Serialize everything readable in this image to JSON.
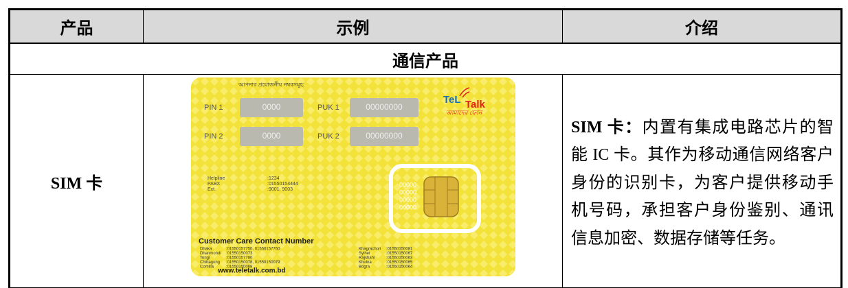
{
  "table": {
    "header": [
      "产品",
      "示例",
      "介绍"
    ],
    "section": "通信产品",
    "rows": [
      {
        "product": "SIM 卡",
        "example": {
          "heading": "আপনার প্রয়োজনীয় নম্বরসমূহ:",
          "brand": [
            "TeL",
            "Talk"
          ],
          "tagline": "আমাদের ফোন",
          "codes": [
            {
              "label": "PIN 1",
              "value": "0000"
            },
            {
              "label": "PUK 1",
              "value": "00000000"
            },
            {
              "label": "PIN 2",
              "value": "0000"
            },
            {
              "label": "PUK 2",
              "value": "00000000"
            }
          ],
          "numbers": [
            {
              "label": "Helpline",
              "value": ":1234"
            },
            {
              "label": "PABX",
              "value": ":01550154444"
            },
            {
              "label": "Ext.",
              "value": ":9001, 9003"
            }
          ],
          "chip_codes": [
            "00000",
            "00000",
            "00000",
            "00000"
          ],
          "contact_title": "Customer Care Contact Number",
          "contacts": [
            {
              "label": "Dhaka",
              "value": ":01550157750, 01550157760"
            },
            {
              "label": "Dhanmondi",
              "value": ":01550150073"
            },
            {
              "label": "Tongi",
              "value": ":01550157780"
            },
            {
              "label": "Chittagong",
              "value": ":01550150078, 01550150079"
            },
            {
              "label": "Comilla",
              "value": ":01550150068"
            },
            {
              "label": "Khagrachori",
              "value": ":01550150081"
            },
            {
              "label": "Sylhet",
              "value": ":01550150067"
            },
            {
              "label": "Rajshahi",
              "value": ":01550150063"
            },
            {
              "label": "Khulna",
              "value": ":01550150065"
            },
            {
              "label": "Bogra",
              "value": ":01550150064"
            }
          ],
          "website": "www.teletalk.com.bd"
        },
        "description": {
          "term": "SIM 卡：",
          "text": "内置有集成电路芯片的智能 IC 卡。其作为移动通信网络客户身份的识别卡，为客户提供移动手机号码，承担客户身份鉴别、通讯信息加密、数据存储等任务。"
        }
      }
    ]
  }
}
